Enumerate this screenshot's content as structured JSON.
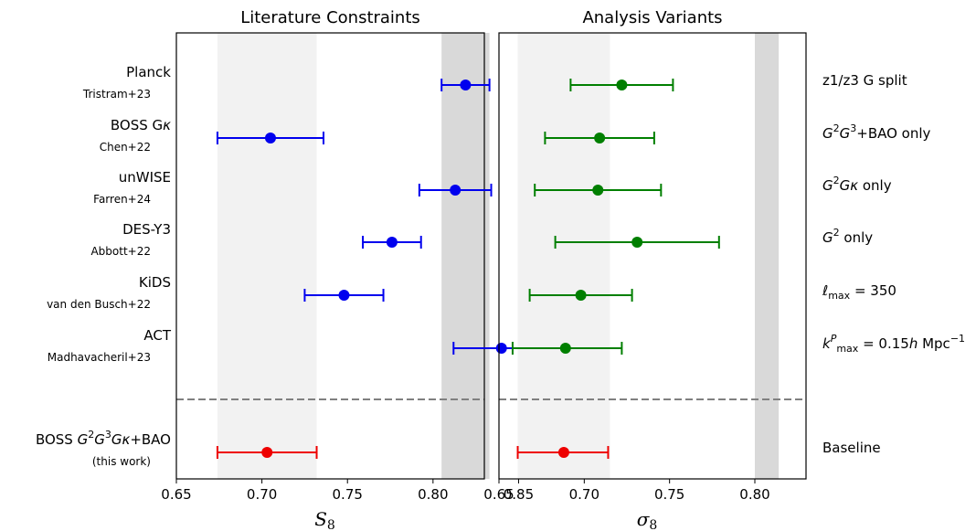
{
  "chart_data": [
    {
      "type": "scatter",
      "title": "Literature Constraints",
      "xlabel": "S_8",
      "xlabel_symbol": "S",
      "xlabel_sub": "8",
      "xlim": [
        0.65,
        0.83
      ],
      "xticks": [
        "0.65",
        "0.70",
        "0.75",
        "0.80",
        "0.85"
      ],
      "xtick_values": [
        0.65,
        0.7,
        0.75,
        0.8,
        0.85
      ],
      "bands": [
        {
          "from": 0.674,
          "to": 0.732,
          "color": "#f2f2f2"
        },
        {
          "from": 0.805,
          "to": 0.833,
          "color": "#d9d9d9"
        }
      ],
      "points": [
        {
          "label_parts": [
            {
              "t": "Planck"
            }
          ],
          "sub": "Tristram+23",
          "value": 0.819,
          "low": 0.805,
          "high": 0.833,
          "color": "#0000ee"
        },
        {
          "label_parts": [
            {
              "t": "BOSS G"
            },
            {
              "t": "κ",
              "style": "italic"
            }
          ],
          "sub": "Chen+22",
          "value": 0.705,
          "low": 0.674,
          "high": 0.736,
          "color": "#0000ee"
        },
        {
          "label_parts": [
            {
              "t": "unWISE"
            }
          ],
          "sub": "Farren+24",
          "value": 0.813,
          "low": 0.792,
          "high": 0.834,
          "color": "#0000ee"
        },
        {
          "label_parts": [
            {
              "t": "DES-Y3"
            }
          ],
          "sub": "Abbott+22",
          "value": 0.776,
          "low": 0.759,
          "high": 0.793,
          "color": "#0000ee"
        },
        {
          "label_parts": [
            {
              "t": "KiDS"
            }
          ],
          "sub": "van den Busch+22",
          "value": 0.748,
          "low": 0.725,
          "high": 0.771,
          "color": "#0000ee"
        },
        {
          "label_parts": [
            {
              "t": "ACT"
            }
          ],
          "sub": "Madhavacheril+23",
          "value": 0.84,
          "low": 0.812,
          "high": 0.868,
          "color": "#0000ee"
        },
        {
          "label_parts": [
            {
              "t": "BOSS "
            },
            {
              "t": "G",
              "style": "italic"
            },
            {
              "t": "2",
              "sup": true
            },
            {
              "t": "G",
              "style": "italic"
            },
            {
              "t": "3",
              "sup": true
            },
            {
              "t": "G",
              "style": "italic"
            },
            {
              "t": "κ",
              "style": "italic"
            },
            {
              "t": "+BAO"
            }
          ],
          "sub": "(this work)",
          "value": 0.703,
          "low": 0.674,
          "high": 0.732,
          "color": "#ee0000"
        }
      ]
    },
    {
      "type": "scatter",
      "title": "Analysis Variants",
      "xlabel": "σ_8",
      "xlabel_symbol": "σ",
      "xlabel_sub": "8",
      "xlim": [
        0.65,
        0.83
      ],
      "xticks": [
        "0.65",
        "0.70",
        "0.75",
        "0.80"
      ],
      "xtick_values": [
        0.65,
        0.7,
        0.75,
        0.8
      ],
      "bands": [
        {
          "from": 0.661,
          "to": 0.715,
          "color": "#f2f2f2"
        },
        {
          "from": 0.8,
          "to": 0.814,
          "color": "#d9d9d9"
        }
      ],
      "points": [
        {
          "label_parts": [
            {
              "t": "z1/z3 G split"
            }
          ],
          "value": 0.722,
          "low": 0.692,
          "high": 0.752,
          "color": "#007f00"
        },
        {
          "label_parts": [
            {
              "t": "G",
              "style": "italic"
            },
            {
              "t": "2",
              "sup": true
            },
            {
              "t": "G",
              "style": "italic"
            },
            {
              "t": "3",
              "sup": true
            },
            {
              "t": "+BAO only"
            }
          ],
          "value": 0.709,
          "low": 0.677,
          "high": 0.741,
          "color": "#007f00"
        },
        {
          "label_parts": [
            {
              "t": "G",
              "style": "italic"
            },
            {
              "t": "2",
              "sup": true
            },
            {
              "t": "G",
              "style": "italic"
            },
            {
              "t": "κ",
              "style": "italic"
            },
            {
              "t": " only"
            }
          ],
          "value": 0.708,
          "low": 0.671,
          "high": 0.745,
          "color": "#007f00"
        },
        {
          "label_parts": [
            {
              "t": "G",
              "style": "italic"
            },
            {
              "t": "2",
              "sup": true
            },
            {
              "t": " only"
            }
          ],
          "value": 0.731,
          "low": 0.683,
          "high": 0.779,
          "color": "#007f00"
        },
        {
          "label_parts": [
            {
              "t": "ℓ",
              "style": "italic"
            },
            {
              "t": "max",
              "sub": true
            },
            {
              "t": " = 350"
            }
          ],
          "value": 0.698,
          "low": 0.668,
          "high": 0.728,
          "color": "#007f00"
        },
        {
          "label_parts": [
            {
              "t": "k",
              "style": "italic"
            },
            {
              "t": "P",
              "sup": true,
              "style": "italic"
            },
            {
              "t": "max",
              "sub": true
            },
            {
              "t": " = 0.15"
            },
            {
              "t": "h",
              "style": "italic"
            },
            {
              "t": " Mpc"
            },
            {
              "t": "−1",
              "sup": true
            }
          ],
          "value": 0.689,
          "low": 0.658,
          "high": 0.722,
          "color": "#007f00"
        },
        {
          "label_parts": [
            {
              "t": "Baseline"
            }
          ],
          "value": 0.688,
          "low": 0.661,
          "high": 0.714,
          "color": "#ee0000"
        }
      ]
    }
  ]
}
